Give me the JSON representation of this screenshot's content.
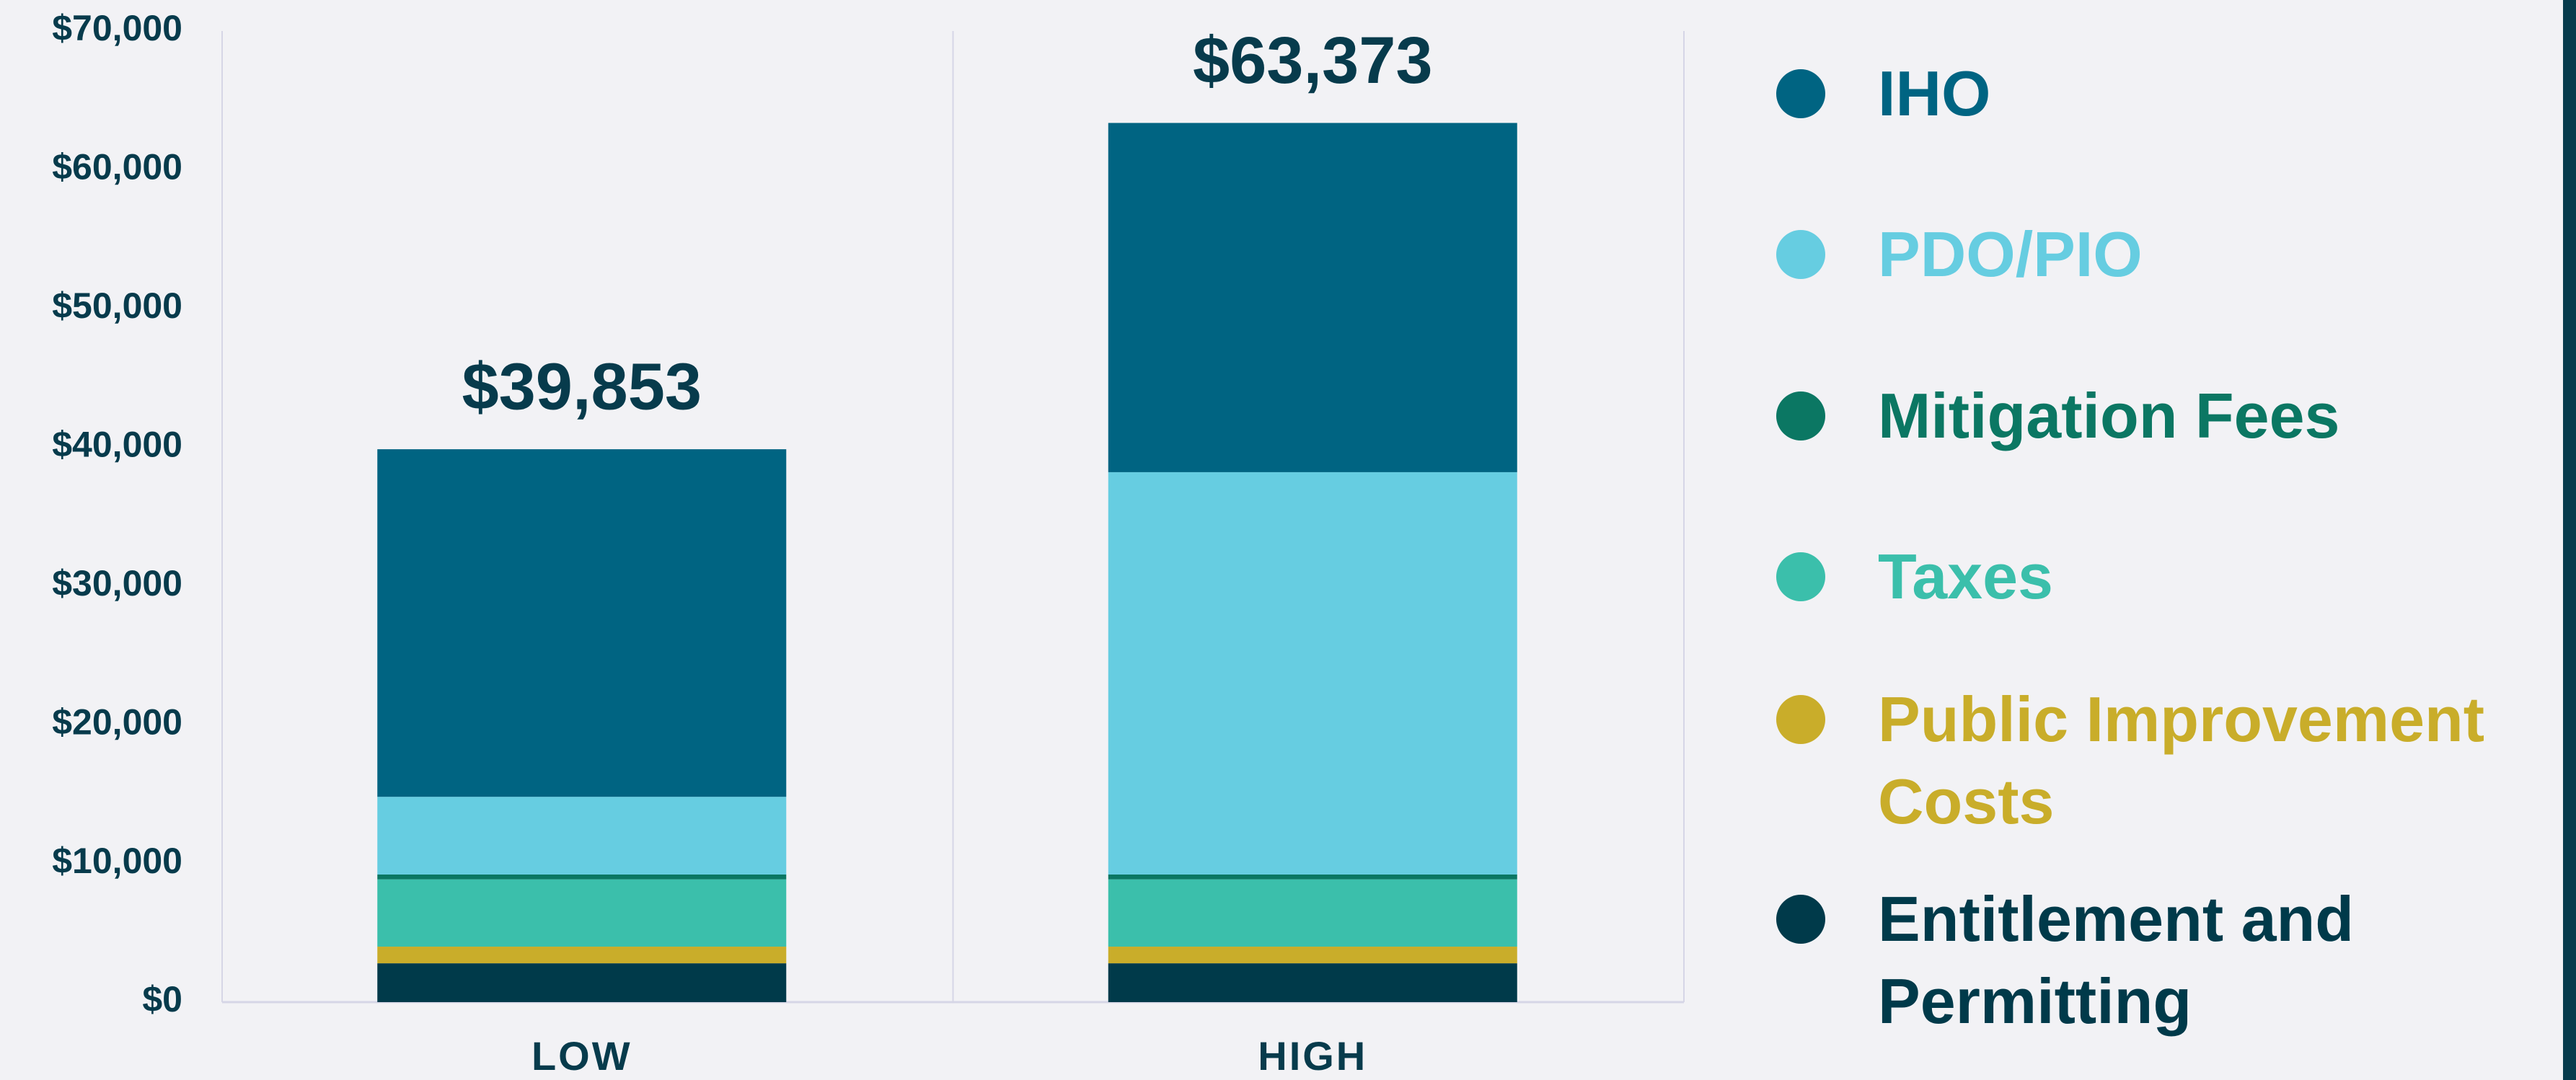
{
  "chart_data": {
    "type": "stacked_bar",
    "categories": [
      "LOW",
      "HIGH"
    ],
    "series": [
      {
        "name": "Entitlement and Permitting",
        "color": "#003a4a",
        "values": [
          2800,
          2800
        ]
      },
      {
        "name": "Public Improvement Costs",
        "color": "#c9ad2a",
        "values": [
          1200,
          1200
        ]
      },
      {
        "name": "Taxes",
        "color": "#3bbfab",
        "values": [
          4850,
          4850
        ]
      },
      {
        "name": "Mitigation Fees",
        "color": "#0b7763",
        "values": [
          350,
          350
        ]
      },
      {
        "name": "PDO/PIO",
        "color": "#66cde1",
        "values": [
          5600,
          29000
        ]
      },
      {
        "name": "IHO",
        "color": "#006482",
        "values": [
          25053,
          25173
        ]
      }
    ],
    "totals": {
      "values": [
        39853,
        63373
      ],
      "value_labels": [
        "$39,853",
        "$63,373"
      ]
    },
    "ylim": [
      0,
      70000
    ],
    "yticks": [
      {
        "value": 0,
        "label": "$0"
      },
      {
        "value": 10000,
        "label": "$10,000"
      },
      {
        "value": 20000,
        "label": "$20,000"
      },
      {
        "value": 30000,
        "label": "$30,000"
      },
      {
        "value": 40000,
        "label": "$40,000"
      },
      {
        "value": 50000,
        "label": "$50,000"
      },
      {
        "value": 60000,
        "label": "$60,000"
      },
      {
        "value": 70000,
        "label": "$70,000"
      }
    ],
    "legend": "right"
  }
}
